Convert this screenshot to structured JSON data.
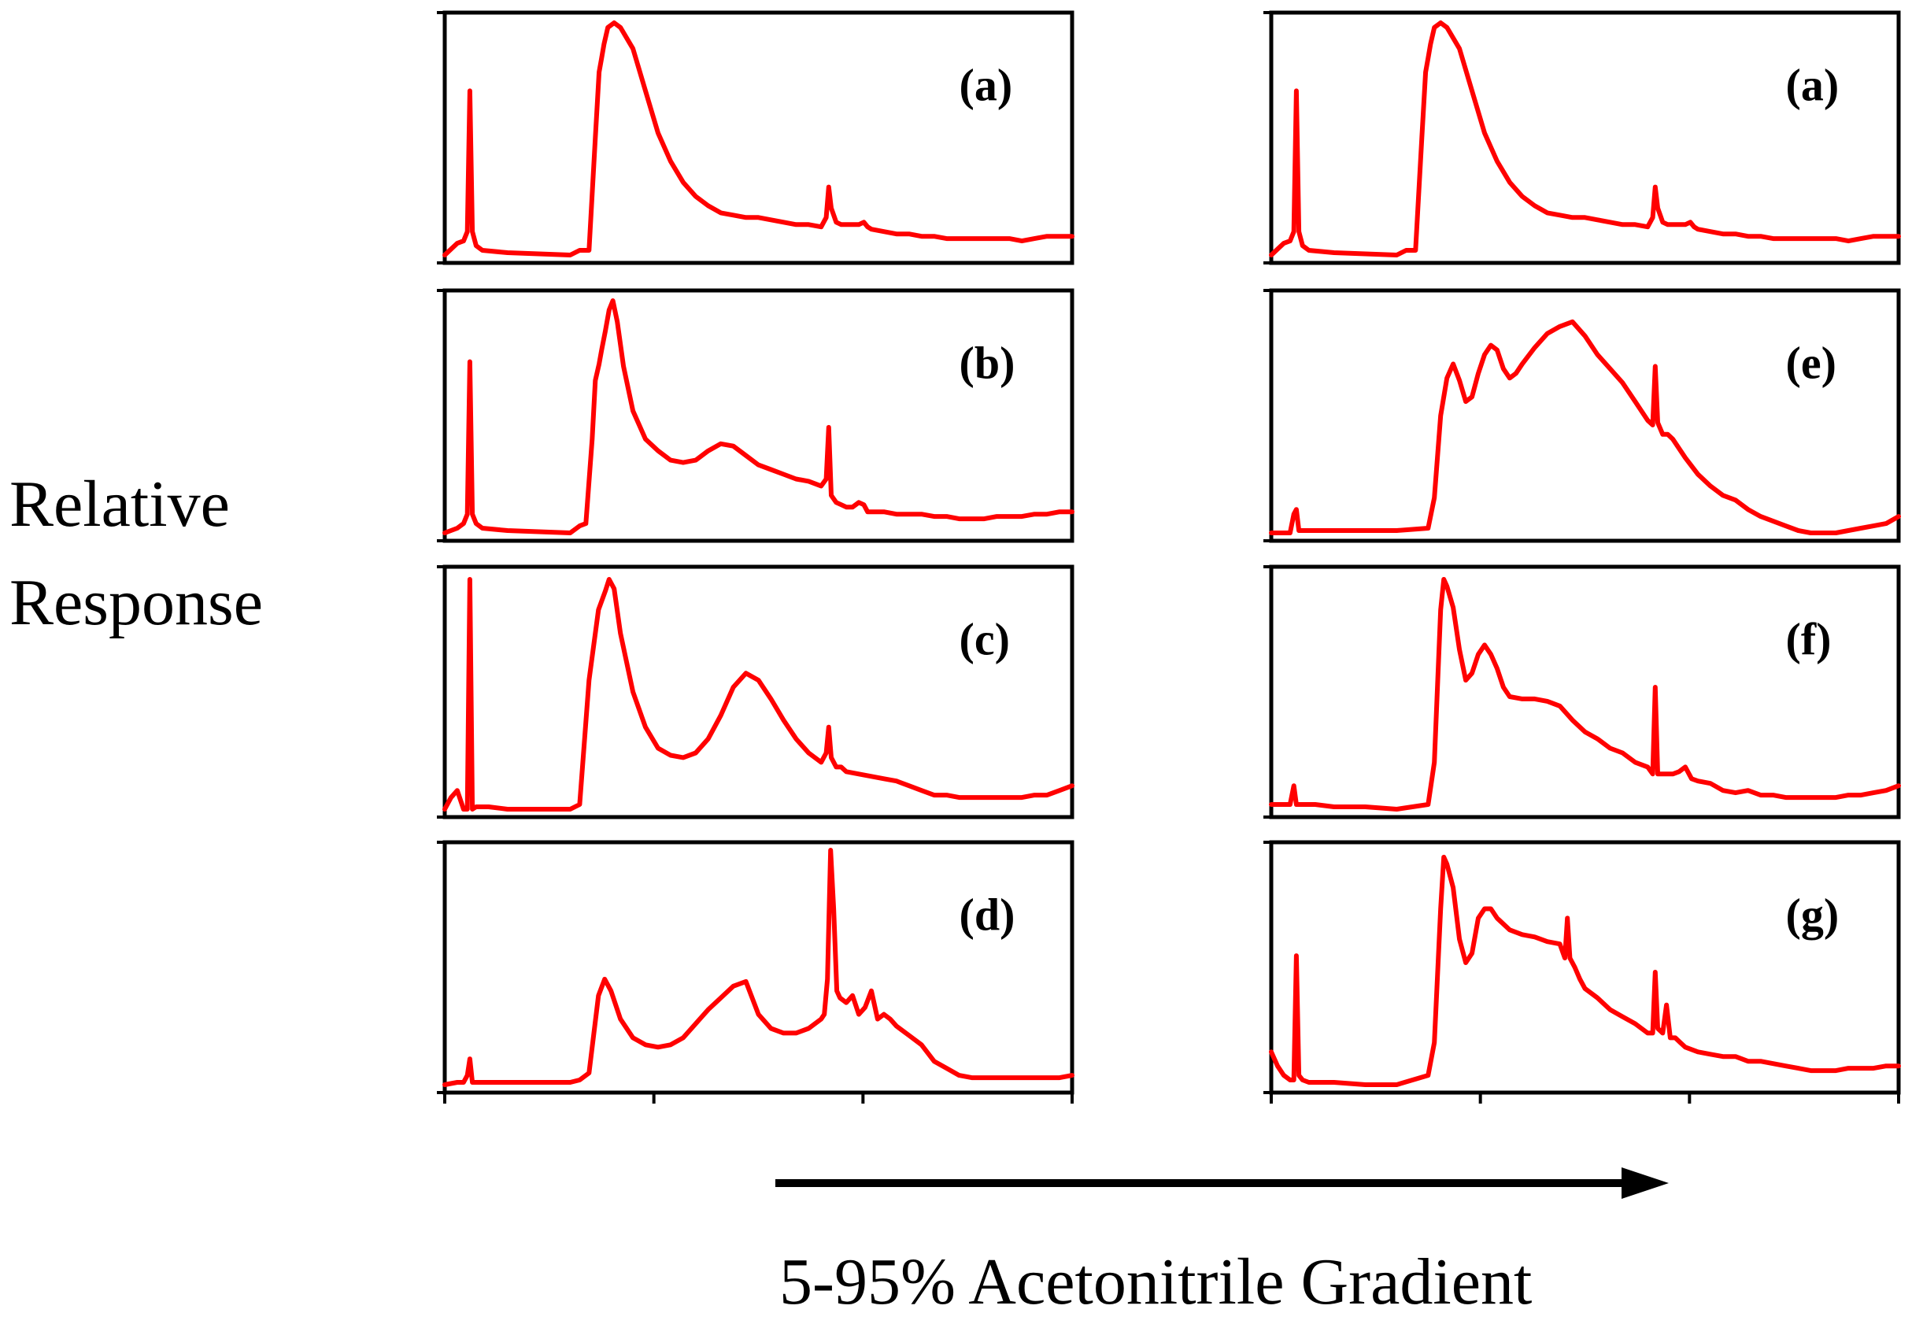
{
  "figure": {
    "ylabel": [
      "Relative",
      "Response"
    ],
    "xlabel": "5-95% Acetonitrile Gradient",
    "colors": {
      "trace": "#ff0000",
      "axes": "#000000"
    }
  },
  "chart_data": [
    {
      "type": "line",
      "label": "(a)",
      "column": 0,
      "row": 0,
      "xlim": [
        0,
        100
      ],
      "ylim": [
        0,
        100
      ],
      "x": [
        0,
        2,
        3,
        3.6,
        4,
        4.4,
        5,
        6,
        10,
        20,
        21.5,
        23,
        24,
        24.6,
        25,
        25.4,
        26,
        27,
        28,
        30,
        32,
        34,
        36,
        38,
        40,
        42,
        44,
        46,
        48,
        50,
        52,
        54,
        56,
        58,
        60,
        60.8,
        61.2,
        61.6,
        62.4,
        63.2,
        64,
        65,
        66,
        66.8,
        67.4,
        68,
        70,
        72,
        74,
        76,
        78,
        80,
        82,
        84,
        86,
        88,
        90,
        92,
        94,
        96,
        98,
        100
      ],
      "y": [
        0,
        5,
        6,
        10,
        70,
        10,
        4,
        2,
        1,
        0,
        2,
        2,
        50,
        78,
        84,
        90,
        97,
        99,
        97,
        88,
        70,
        52,
        40,
        31,
        25,
        21,
        18,
        17,
        16,
        16,
        15,
        14,
        13,
        13,
        12,
        16,
        29,
        20,
        14,
        13,
        13,
        13,
        13,
        14,
        12,
        11,
        10,
        9,
        9,
        8,
        8,
        7,
        7,
        7,
        7,
        7,
        7,
        6,
        7,
        8,
        8,
        8
      ]
    },
    {
      "type": "line",
      "label": "(b)",
      "column": 0,
      "row": 1,
      "xlim": [
        0,
        100
      ],
      "ylim": [
        0,
        100
      ],
      "x": [
        0,
        2,
        3,
        3.6,
        4,
        4.4,
        5,
        6,
        10,
        20,
        21.5,
        22.5,
        23.5,
        24,
        24.6,
        25,
        25.6,
        26.2,
        26.8,
        27.5,
        28.5,
        30,
        32,
        34,
        36,
        38,
        40,
        42,
        44,
        46,
        48,
        50,
        52,
        54,
        56,
        58,
        60,
        60.8,
        61.2,
        61.6,
        62.4,
        63.2,
        64,
        65,
        66,
        66.8,
        67.4,
        68,
        70,
        72,
        74,
        76,
        78,
        80,
        82,
        84,
        86,
        88,
        90,
        92,
        94,
        96,
        98,
        100
      ],
      "y": [
        0,
        2,
        4,
        8,
        73,
        8,
        4,
        2,
        1,
        0,
        3,
        4,
        40,
        65,
        72,
        78,
        86,
        95,
        99,
        90,
        71,
        52,
        40,
        35,
        31,
        30,
        31,
        35,
        38,
        37,
        33,
        29,
        27,
        25,
        23,
        22,
        20,
        23,
        45,
        16,
        13,
        12,
        11,
        11,
        13,
        12,
        9,
        9,
        9,
        8,
        8,
        8,
        7,
        7,
        6,
        6,
        6,
        7,
        7,
        7,
        8,
        8,
        9,
        9
      ]
    },
    {
      "type": "line",
      "label": "(c)",
      "column": 0,
      "row": 2,
      "xlim": [
        0,
        100
      ],
      "ylim": [
        0,
        100
      ],
      "x": [
        0,
        1,
        2,
        3,
        3.6,
        4,
        4.4,
        5,
        7,
        10,
        20,
        21.5,
        23,
        24.5,
        25.6,
        26.2,
        27,
        28,
        30,
        32,
        34,
        36,
        38,
        40,
        42,
        44,
        46,
        48,
        50,
        52,
        54,
        56,
        58,
        60,
        60.8,
        61.2,
        61.6,
        62.4,
        63.2,
        64,
        66,
        68,
        70,
        72,
        74,
        76,
        78,
        80,
        82,
        84,
        86,
        88,
        90,
        92,
        94,
        96,
        98,
        100
      ],
      "y": [
        0,
        5,
        8,
        0,
        0,
        98,
        0,
        1,
        1,
        0,
        0,
        2,
        55,
        85,
        93,
        98,
        94,
        75,
        50,
        35,
        26,
        23,
        22,
        24,
        30,
        40,
        52,
        58,
        55,
        47,
        38,
        30,
        24,
        20,
        24,
        35,
        22,
        18,
        18,
        16,
        15,
        14,
        13,
        12,
        10,
        8,
        6,
        6,
        5,
        5,
        5,
        5,
        5,
        5,
        6,
        6,
        8,
        10
      ]
    },
    {
      "type": "line",
      "label": "(d)",
      "column": 0,
      "row": 3,
      "xlim": [
        0,
        100
      ],
      "ylim": [
        0,
        100
      ],
      "x": [
        0,
        2,
        3,
        3.6,
        4,
        4.4,
        5,
        6,
        10,
        20,
        21.5,
        23,
        24.5,
        25.5,
        26.5,
        28,
        30,
        32,
        34,
        36,
        38,
        40,
        42,
        44,
        46,
        48,
        50,
        52,
        54,
        56,
        58,
        60,
        60.5,
        61,
        61.5,
        62,
        62.5,
        63,
        64,
        65,
        66,
        67,
        68,
        69,
        70,
        71,
        72,
        74,
        76,
        78,
        80,
        82,
        84,
        86,
        88,
        90,
        92,
        94,
        96,
        98,
        100
      ],
      "y": [
        0,
        1,
        1,
        4,
        11,
        1,
        1,
        1,
        1,
        1,
        2,
        5,
        38,
        45,
        40,
        28,
        20,
        17,
        16,
        17,
        20,
        26,
        32,
        37,
        42,
        44,
        30,
        24,
        22,
        22,
        24,
        28,
        30,
        45,
        100,
        75,
        40,
        37,
        35,
        38,
        30,
        33,
        40,
        28,
        30,
        28,
        25,
        21,
        17,
        10,
        7,
        4,
        3,
        3,
        3,
        3,
        3,
        3,
        3,
        3,
        4
      ]
    },
    {
      "type": "line",
      "label": "(a)",
      "column": 1,
      "row": 0,
      "xlim": [
        0,
        100
      ],
      "ylim": [
        0,
        100
      ],
      "x": [
        0,
        2,
        3,
        3.6,
        4,
        4.4,
        5,
        6,
        10,
        20,
        21.5,
        23,
        24,
        24.6,
        25,
        25.4,
        26,
        27,
        28,
        30,
        32,
        34,
        36,
        38,
        40,
        42,
        44,
        46,
        48,
        50,
        52,
        54,
        56,
        58,
        60,
        60.8,
        61.2,
        61.6,
        62.4,
        63.2,
        64,
        65,
        66,
        66.8,
        67.4,
        68,
        70,
        72,
        74,
        76,
        78,
        80,
        82,
        84,
        86,
        88,
        90,
        92,
        94,
        96,
        98,
        100
      ],
      "y": [
        0,
        5,
        6,
        10,
        70,
        10,
        4,
        2,
        1,
        0,
        2,
        2,
        50,
        78,
        84,
        90,
        97,
        99,
        97,
        88,
        70,
        52,
        40,
        31,
        25,
        21,
        18,
        17,
        16,
        16,
        15,
        14,
        13,
        13,
        12,
        16,
        29,
        20,
        14,
        13,
        13,
        13,
        13,
        14,
        12,
        11,
        10,
        9,
        9,
        8,
        8,
        7,
        7,
        7,
        7,
        7,
        7,
        6,
        7,
        8,
        8,
        8
      ]
    },
    {
      "type": "line",
      "label": "(e)",
      "column": 1,
      "row": 1,
      "xlim": [
        0,
        100
      ],
      "ylim": [
        0,
        100
      ],
      "x": [
        0,
        3,
        3.6,
        4,
        4.4,
        5,
        6,
        7,
        10,
        20,
        25,
        26,
        27,
        28,
        29,
        30,
        31,
        32,
        33,
        34,
        35,
        36,
        37,
        38,
        39,
        40,
        42,
        44,
        46,
        48,
        50,
        52,
        54,
        56,
        58,
        60,
        60.8,
        61.2,
        61.6,
        62.4,
        63.2,
        64,
        66,
        68,
        70,
        72,
        74,
        76,
        78,
        80,
        82,
        84,
        86,
        88,
        90,
        92,
        94,
        96,
        98,
        100
      ],
      "y": [
        0,
        0,
        8,
        10,
        1,
        1,
        1,
        1,
        1,
        1,
        2,
        15,
        50,
        66,
        72,
        65,
        56,
        58,
        68,
        76,
        80,
        78,
        70,
        66,
        68,
        72,
        79,
        85,
        88,
        90,
        84,
        76,
        70,
        64,
        56,
        48,
        46,
        71,
        47,
        42,
        42,
        40,
        32,
        25,
        20,
        16,
        14,
        10,
        7,
        5,
        3,
        1,
        0,
        0,
        0,
        1,
        2,
        3,
        4,
        7
      ]
    },
    {
      "type": "line",
      "label": "(f)",
      "column": 1,
      "row": 2,
      "xlim": [
        0,
        100
      ],
      "ylim": [
        0,
        100
      ],
      "x": [
        0,
        3,
        3.6,
        4,
        4.4,
        5,
        6,
        7,
        10,
        15,
        20,
        25,
        26,
        27,
        27.5,
        28,
        29,
        30,
        31,
        32,
        33,
        34,
        35,
        36,
        37,
        38,
        40,
        42,
        44,
        46,
        48,
        50,
        52,
        54,
        56,
        58,
        60,
        60.8,
        61.2,
        61.6,
        62.4,
        63.2,
        64,
        65,
        66,
        67,
        68,
        70,
        72,
        74,
        76,
        78,
        80,
        82,
        84,
        86,
        88,
        90,
        92,
        94,
        96,
        98,
        100
      ],
      "y": [
        2,
        2,
        10,
        2,
        2,
        2,
        2,
        2,
        1,
        1,
        0,
        2,
        20,
        85,
        98,
        95,
        86,
        68,
        55,
        58,
        66,
        70,
        66,
        60,
        52,
        48,
        47,
        47,
        46,
        44,
        38,
        33,
        30,
        26,
        24,
        20,
        18,
        15,
        52,
        15,
        15,
        15,
        15,
        16,
        18,
        13,
        12,
        11,
        8,
        7,
        8,
        6,
        6,
        5,
        5,
        5,
        5,
        5,
        6,
        6,
        7,
        8,
        10
      ]
    },
    {
      "type": "line",
      "label": "(g)",
      "column": 1,
      "row": 3,
      "xlim": [
        0,
        100
      ],
      "ylim": [
        0,
        100
      ],
      "x": [
        0,
        1,
        2,
        3,
        3.6,
        4,
        4.4,
        5,
        6,
        7,
        10,
        15,
        20,
        25,
        26,
        27,
        27.5,
        28,
        29,
        30,
        31,
        32,
        33,
        34,
        35,
        36,
        38,
        40,
        42,
        44,
        46,
        46.8,
        47.2,
        47.6,
        48.4,
        49.2,
        50,
        52,
        54,
        56,
        58,
        60,
        60.8,
        61.2,
        61.6,
        62.4,
        63,
        63.6,
        64.4,
        65.2,
        66,
        68,
        70,
        72,
        74,
        76,
        78,
        80,
        82,
        84,
        86,
        88,
        90,
        92,
        94,
        96,
        98,
        100
      ],
      "y": [
        14,
        8,
        4,
        2,
        2,
        55,
        4,
        2,
        1,
        1,
        1,
        0,
        0,
        4,
        18,
        75,
        97,
        94,
        84,
        62,
        52,
        56,
        71,
        75,
        75,
        71,
        66,
        64,
        63,
        61,
        60,
        54,
        71,
        54,
        50,
        45,
        41,
        37,
        32,
        29,
        26,
        22,
        22,
        48,
        24,
        22,
        34,
        20,
        20,
        18,
        16,
        14,
        13,
        12,
        12,
        10,
        10,
        9,
        8,
        7,
        6,
        6,
        6,
        7,
        7,
        7,
        8,
        8
      ]
    }
  ]
}
